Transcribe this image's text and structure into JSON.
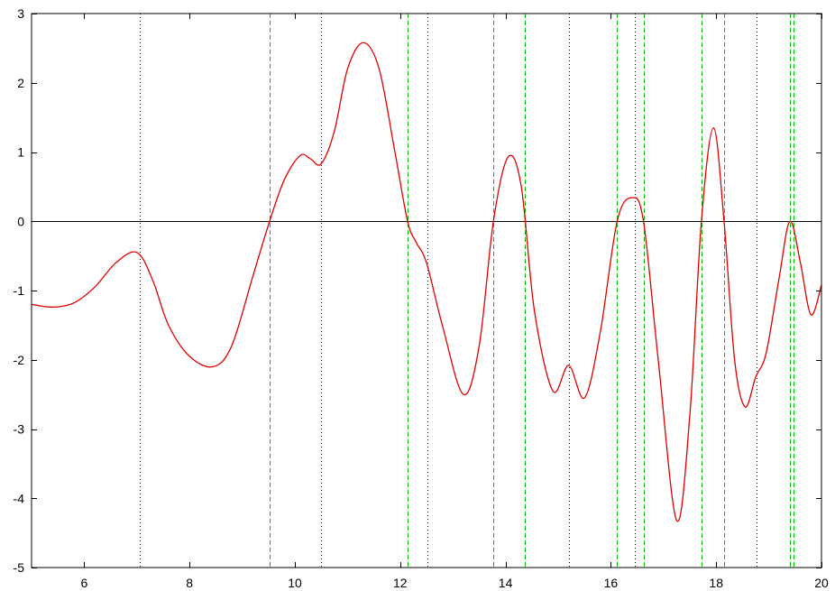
{
  "chart_data": {
    "type": "line",
    "title": "",
    "xlabel": "",
    "ylabel": "",
    "xlim": [
      5,
      20
    ],
    "ylim": [
      -5,
      3
    ],
    "xticks": [
      6,
      8,
      10,
      12,
      14,
      16,
      18,
      20
    ],
    "yticks": [
      -5,
      -4,
      -3,
      -2,
      -1,
      0,
      1,
      2,
      3
    ],
    "xtick_labels": [
      "6",
      "8",
      "10",
      "12",
      "14",
      "16",
      "18",
      "20"
    ],
    "ytick_labels": [
      "-5",
      "-4",
      "-3",
      "-2",
      "-1",
      "0",
      "1",
      "2",
      "3"
    ],
    "grid": false,
    "legend": "none",
    "zero_line": 0,
    "series": [
      {
        "color": "#e00000",
        "x": [
          5.0,
          5.4,
          5.8,
          6.2,
          6.6,
          7.0,
          7.3,
          7.6,
          8.0,
          8.45,
          8.8,
          9.2,
          9.52,
          9.8,
          10.1,
          10.3,
          10.5,
          10.75,
          11.0,
          11.3,
          11.6,
          11.9,
          12.14,
          12.3,
          12.5,
          12.8,
          13.2,
          13.5,
          13.77,
          14.05,
          14.3,
          14.55,
          14.9,
          15.2,
          15.5,
          15.8,
          16.12,
          16.4,
          16.62,
          16.9,
          17.25,
          17.5,
          17.72,
          17.95,
          18.15,
          18.35,
          18.55,
          18.75,
          18.95,
          19.2,
          19.4,
          19.6,
          19.8,
          20.0
        ],
        "y": [
          -1.2,
          -1.24,
          -1.18,
          -0.95,
          -0.6,
          -0.45,
          -0.85,
          -1.5,
          -1.95,
          -2.1,
          -1.8,
          -0.8,
          0.0,
          0.6,
          0.95,
          0.9,
          0.83,
          1.3,
          2.2,
          2.58,
          2.2,
          1.0,
          0.0,
          -0.3,
          -0.6,
          -1.5,
          -2.5,
          -1.8,
          0.0,
          0.93,
          0.5,
          -1.3,
          -2.45,
          -2.08,
          -2.55,
          -1.6,
          0.0,
          0.34,
          0.0,
          -2.0,
          -4.32,
          -2.8,
          0.0,
          1.35,
          0.0,
          -2.0,
          -2.68,
          -2.25,
          -1.9,
          -0.8,
          0.0,
          -0.6,
          -1.35,
          -0.92
        ]
      }
    ],
    "vlines": [
      {
        "style": "dotted",
        "color": "#000000",
        "x": [
          7.05,
          10.5,
          12.52,
          15.2,
          16.45,
          18.77
        ]
      },
      {
        "style": "dashed",
        "color": "#00c000",
        "x": [
          9.52,
          12.14,
          13.77,
          14.37,
          16.12,
          16.62,
          17.72,
          18.15,
          19.4,
          19.47
        ]
      }
    ]
  }
}
